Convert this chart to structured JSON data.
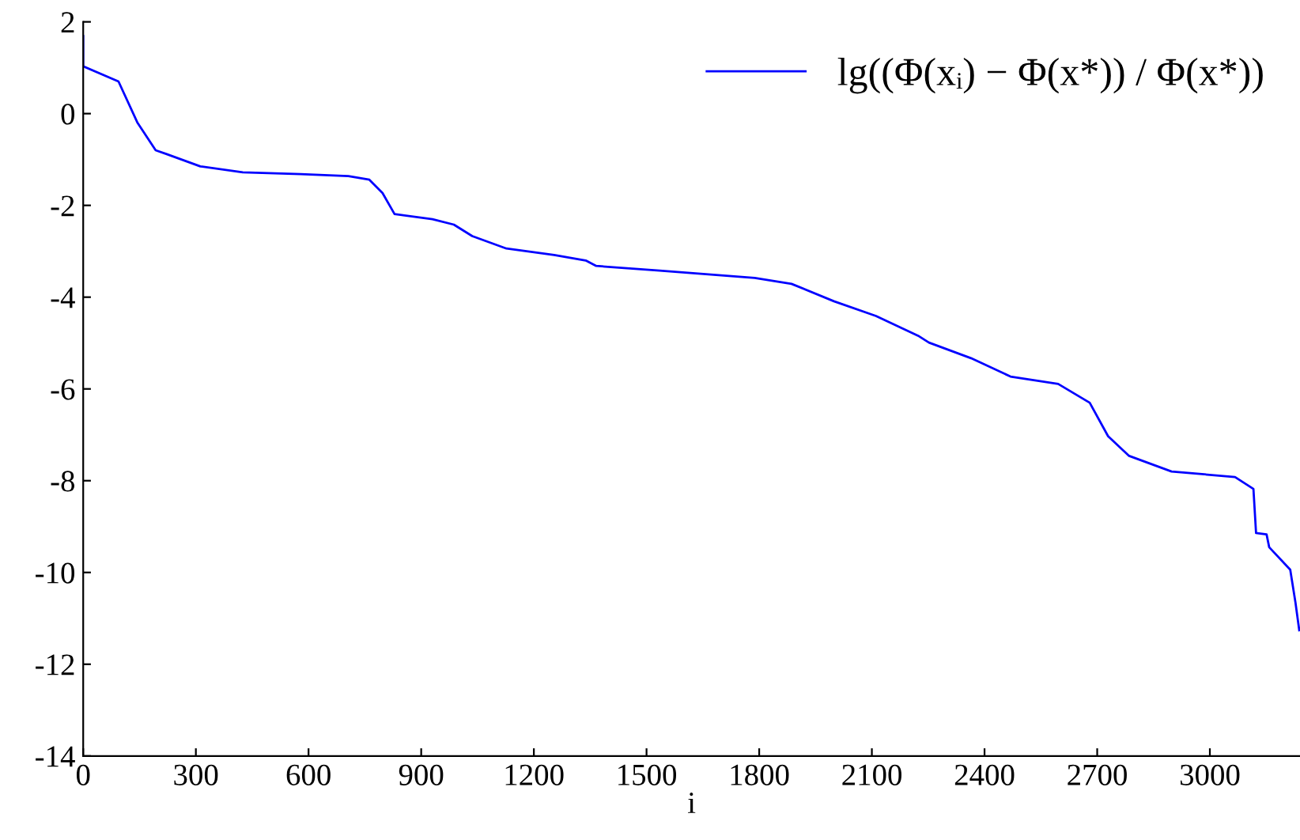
{
  "chart_data": {
    "type": "line",
    "xlabel": "i",
    "legend": "top right",
    "grid": false,
    "xlim": [
      0,
      3240
    ],
    "ylim": [
      -14,
      2
    ],
    "xticks": [
      0,
      300,
      600,
      900,
      1200,
      1500,
      1800,
      2100,
      2400,
      2700,
      3000
    ],
    "yticks": [
      -14,
      -12,
      -10,
      -8,
      -6,
      -4,
      -2,
      0,
      2
    ],
    "series": [
      {
        "name": "lg((Φ(xᵢ) − Φ(x*)) / Φ(x*))",
        "color": "#0000ff",
        "x": [
          0,
          0,
          94,
          144,
          193,
          221,
          312,
          425,
          579,
          706,
          762,
          797,
          829,
          930,
          987,
          1036,
          1127,
          1254,
          1338,
          1366,
          1535,
          1788,
          1886,
          1999,
          2111,
          2223,
          2252,
          2364,
          2469,
          2596,
          2680,
          2729,
          2785,
          2898,
          3067,
          3116,
          3123,
          3151,
          3158,
          3214,
          3228,
          3238
        ],
        "values": [
          1.69,
          1.03,
          0.7,
          -0.19,
          -0.8,
          -0.88,
          -1.15,
          -1.28,
          -1.32,
          -1.36,
          -1.44,
          -1.73,
          -2.19,
          -2.3,
          -2.42,
          -2.67,
          -2.94,
          -3.08,
          -3.2,
          -3.32,
          -3.42,
          -3.58,
          -3.71,
          -4.09,
          -4.41,
          -4.84,
          -4.99,
          -5.33,
          -5.73,
          -5.89,
          -6.3,
          -7.03,
          -7.46,
          -7.8,
          -7.92,
          -8.18,
          -9.14,
          -9.17,
          -9.45,
          -9.94,
          -10.66,
          -11.26
        ]
      }
    ]
  }
}
